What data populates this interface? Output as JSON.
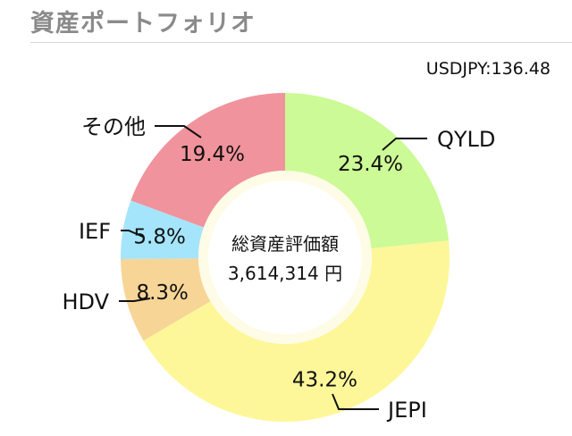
{
  "header": {
    "title": "資産ポートフォリオ"
  },
  "exchange_rate": {
    "text": "USDJPY:136.48"
  },
  "center": {
    "label": "総資産評価額",
    "value": "3,614,314 円"
  },
  "chart_data": {
    "type": "pie",
    "donut": true,
    "title": "",
    "categories": [
      "QYLD",
      "JEPI",
      "HDV",
      "IEF",
      "その他"
    ],
    "values": [
      23.4,
      43.2,
      8.3,
      5.8,
      19.4
    ],
    "value_labels": [
      "23.4%",
      "43.2%",
      "8.3%",
      "5.8%",
      "19.4%"
    ],
    "colors": [
      "#ccfa96",
      "#fdf799",
      "#f7d597",
      "#a5e5fb",
      "#f0939c"
    ],
    "legend": "callout-labels"
  }
}
